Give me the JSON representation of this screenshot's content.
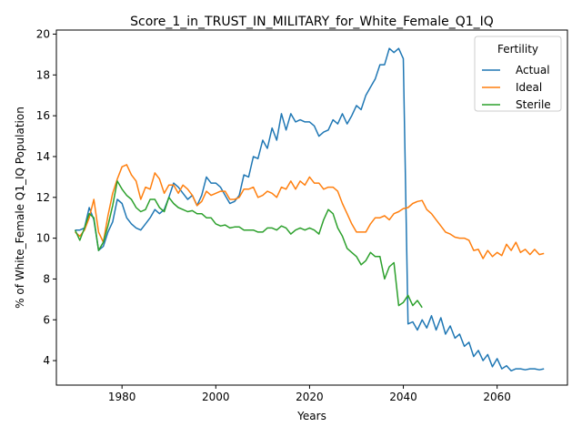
{
  "chart_data": {
    "type": "line",
    "title": "Score_1_in_TRUST_IN_MILITARY_for_White_Female_Q1_IQ",
    "xlabel": "Years",
    "ylabel": "% of White_Female Q1_IQ Population",
    "xlim": [
      1966,
      2075
    ],
    "ylim": [
      2.8,
      20.2
    ],
    "xticks": [
      1980,
      2000,
      2020,
      2040,
      2060
    ],
    "yticks": [
      4,
      6,
      8,
      10,
      12,
      14,
      16,
      18,
      20
    ],
    "grid": false,
    "legend": {
      "title": "Fertility",
      "placement": "top-right"
    },
    "series": [
      {
        "name": "Actual",
        "color": "#1f77b4",
        "x": [
          1970,
          1971,
          1972,
          1973,
          1974,
          1975,
          1976,
          1977,
          1978,
          1979,
          1980,
          1981,
          1982,
          1983,
          1984,
          1985,
          1986,
          1987,
          1988,
          1989,
          1990,
          1991,
          1992,
          1993,
          1994,
          1995,
          1996,
          1997,
          1998,
          1999,
          2000,
          2001,
          2002,
          2003,
          2004,
          2005,
          2006,
          2007,
          2008,
          2009,
          2010,
          2011,
          2012,
          2013,
          2014,
          2015,
          2016,
          2017,
          2018,
          2019,
          2020,
          2021,
          2022,
          2023,
          2024,
          2025,
          2026,
          2027,
          2028,
          2029,
          2030,
          2031,
          2032,
          2033,
          2034,
          2035,
          2036,
          2037,
          2038,
          2039,
          2040,
          2041,
          2042,
          2043,
          2044,
          2045,
          2046,
          2047,
          2048,
          2049,
          2050,
          2051,
          2052,
          2053,
          2054,
          2055,
          2056,
          2057,
          2058,
          2059,
          2060,
          2061,
          2062,
          2063,
          2064,
          2065,
          2066,
          2067,
          2068,
          2069,
          2070
        ],
        "values": [
          10.4,
          10.4,
          10.5,
          11.5,
          10.9,
          9.4,
          9.6,
          10.3,
          10.8,
          11.9,
          11.7,
          11.0,
          10.7,
          10.5,
          10.4,
          10.7,
          11.0,
          11.4,
          11.2,
          11.4,
          12.0,
          12.7,
          12.5,
          12.2,
          11.9,
          12.1,
          11.6,
          12.1,
          13.0,
          12.7,
          12.7,
          12.5,
          12.1,
          11.7,
          11.8,
          12.1,
          13.1,
          13.0,
          14.0,
          13.9,
          14.8,
          14.4,
          15.4,
          14.8,
          16.1,
          15.3,
          16.1,
          15.7,
          15.8,
          15.7,
          15.7,
          15.5,
          15.0,
          15.2,
          15.3,
          15.8,
          15.6,
          16.1,
          15.6,
          16.0,
          16.5,
          16.3,
          17.0,
          17.4,
          17.8,
          18.5,
          18.5,
          19.3,
          19.1,
          19.3,
          18.8,
          5.8,
          5.9,
          5.5,
          6.0,
          5.6,
          6.2,
          5.5,
          6.1,
          5.3,
          5.7,
          5.1,
          5.3,
          4.7,
          4.9,
          4.2,
          4.5,
          4.0,
          4.3,
          3.7,
          4.1,
          3.6,
          3.75,
          3.5,
          3.6,
          3.6,
          3.55,
          3.6,
          3.6,
          3.55,
          3.6
        ]
      },
      {
        "name": "Ideal",
        "color": "#ff7f0e",
        "x": [
          1970,
          1971,
          1972,
          1973,
          1974,
          1975,
          1976,
          1977,
          1978,
          1979,
          1980,
          1981,
          1982,
          1983,
          1984,
          1985,
          1986,
          1987,
          1988,
          1989,
          1990,
          1991,
          1992,
          1993,
          1994,
          1995,
          1996,
          1997,
          1998,
          1999,
          2000,
          2001,
          2002,
          2003,
          2004,
          2005,
          2006,
          2007,
          2008,
          2009,
          2010,
          2011,
          2012,
          2013,
          2014,
          2015,
          2016,
          2017,
          2018,
          2019,
          2020,
          2021,
          2022,
          2023,
          2024,
          2025,
          2026,
          2027,
          2028,
          2029,
          2030,
          2031,
          2032,
          2033,
          2034,
          2035,
          2036,
          2037,
          2038,
          2039,
          2040,
          2041,
          2042,
          2043,
          2044,
          2045,
          2046,
          2047,
          2048,
          2049,
          2050,
          2051,
          2052,
          2053,
          2054,
          2055,
          2056,
          2057,
          2058,
          2059,
          2060,
          2061,
          2062,
          2063,
          2064,
          2065,
          2066,
          2067,
          2068,
          2069,
          2070
        ],
        "values": [
          10.3,
          10.1,
          10.4,
          11.0,
          11.9,
          10.3,
          9.8,
          11.1,
          12.2,
          12.9,
          13.5,
          13.6,
          13.1,
          12.8,
          11.9,
          12.5,
          12.4,
          13.2,
          12.9,
          12.2,
          12.6,
          12.6,
          12.2,
          12.6,
          12.4,
          12.1,
          11.6,
          11.8,
          12.3,
          12.1,
          12.2,
          12.3,
          12.3,
          11.9,
          11.9,
          12.0,
          12.4,
          12.4,
          12.5,
          12.0,
          12.1,
          12.3,
          12.2,
          12.0,
          12.5,
          12.4,
          12.8,
          12.4,
          12.8,
          12.6,
          13.0,
          12.7,
          12.7,
          12.4,
          12.5,
          12.5,
          12.3,
          11.7,
          11.2,
          10.7,
          10.3,
          10.3,
          10.3,
          10.7,
          11.0,
          11.0,
          11.1,
          10.9,
          11.2,
          11.3,
          11.45,
          11.5,
          11.7,
          11.8,
          11.85,
          11.4,
          11.2,
          10.9,
          10.6,
          10.3,
          10.2,
          10.05,
          10.0,
          10.0,
          9.9,
          9.4,
          9.45,
          9.0,
          9.4,
          9.1,
          9.3,
          9.15,
          9.7,
          9.4,
          9.8,
          9.3,
          9.45,
          9.2,
          9.45,
          9.2,
          9.25
        ]
      },
      {
        "name": "Sterile",
        "color": "#2ca02c",
        "x": [
          1970,
          1971,
          1972,
          1973,
          1974,
          1975,
          1976,
          1977,
          1978,
          1979,
          1980,
          1981,
          1982,
          1983,
          1984,
          1985,
          1986,
          1987,
          1988,
          1989,
          1990,
          1991,
          1992,
          1993,
          1994,
          1995,
          1996,
          1997,
          1998,
          1999,
          2000,
          2001,
          2002,
          2003,
          2004,
          2005,
          2006,
          2007,
          2008,
          2009,
          2010,
          2011,
          2012,
          2013,
          2014,
          2015,
          2016,
          2017,
          2018,
          2019,
          2020,
          2021,
          2022,
          2023,
          2024,
          2025,
          2026,
          2027,
          2028,
          2029,
          2030,
          2031,
          2032,
          2033,
          2034,
          2035,
          2036,
          2037,
          2038,
          2039,
          2040,
          2041,
          2042,
          2043,
          2044
        ],
        "values": [
          10.4,
          9.9,
          10.5,
          11.2,
          11.0,
          9.4,
          9.8,
          10.6,
          11.6,
          12.8,
          12.4,
          12.1,
          11.9,
          11.5,
          11.3,
          11.4,
          11.9,
          11.9,
          11.5,
          11.3,
          12.0,
          11.7,
          11.5,
          11.4,
          11.3,
          11.35,
          11.2,
          11.2,
          11.0,
          11.0,
          10.7,
          10.6,
          10.65,
          10.5,
          10.55,
          10.55,
          10.4,
          10.4,
          10.4,
          10.3,
          10.3,
          10.5,
          10.5,
          10.4,
          10.6,
          10.5,
          10.2,
          10.4,
          10.5,
          10.4,
          10.5,
          10.4,
          10.2,
          10.9,
          11.4,
          11.2,
          10.5,
          10.1,
          9.5,
          9.3,
          9.1,
          8.7,
          8.9,
          9.3,
          9.1,
          9.1,
          8.0,
          8.6,
          8.8,
          6.7,
          6.85,
          7.2,
          6.7,
          6.95,
          6.6
        ]
      }
    ]
  }
}
